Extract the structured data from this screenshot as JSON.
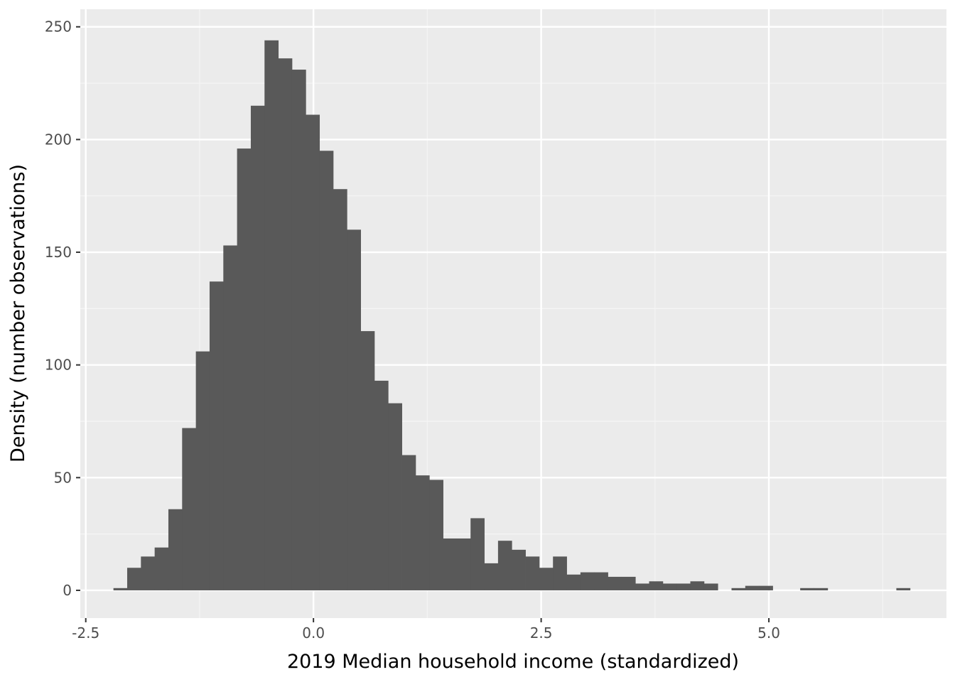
{
  "chart_data": {
    "type": "bar",
    "subtype": "histogram",
    "title": "",
    "xlabel": "2019 Median household income (standardized)",
    "ylabel": "Density (number observations)",
    "xlim": [
      -2.56,
      6.95
    ],
    "ylim": [
      -12.3,
      257.8
    ],
    "x_ticks": [
      {
        "value": -2.5,
        "label": "-2.5"
      },
      {
        "value": 0.0,
        "label": "0.0"
      },
      {
        "value": 2.5,
        "label": "2.5"
      },
      {
        "value": 5.0,
        "label": "5.0"
      }
    ],
    "x_minor_gridlines": [
      -1.25,
      1.25,
      3.75,
      6.25
    ],
    "y_ticks": [
      {
        "value": 0,
        "label": "0"
      },
      {
        "value": 50,
        "label": "50"
      },
      {
        "value": 100,
        "label": "100"
      },
      {
        "value": 150,
        "label": "150"
      },
      {
        "value": 200,
        "label": "200"
      },
      {
        "value": 250,
        "label": "250"
      }
    ],
    "y_minor_gridlines": [
      25,
      75,
      125,
      175,
      225
    ],
    "grid": true,
    "bin_start": -2.196,
    "bin_width": 0.1508,
    "counts": [
      1,
      10,
      15,
      19,
      36,
      72,
      106,
      137,
      153,
      196,
      215,
      244,
      236,
      231,
      211,
      195,
      178,
      160,
      115,
      93,
      83,
      60,
      51,
      49,
      23,
      23,
      32,
      12,
      22,
      18,
      15,
      10,
      15,
      7,
      8,
      8,
      6,
      6,
      3,
      4,
      3,
      3,
      4,
      3,
      0,
      1,
      2,
      2,
      0,
      0,
      1,
      1,
      0,
      0,
      0,
      0,
      0,
      1
    ],
    "colors": {
      "bar": "#595959",
      "panel": "#ebebeb",
      "grid_major": "#ffffff",
      "grid_minor": "#f5f5f5",
      "tick": "#333333",
      "tick_label": "#4d4d4d"
    }
  }
}
